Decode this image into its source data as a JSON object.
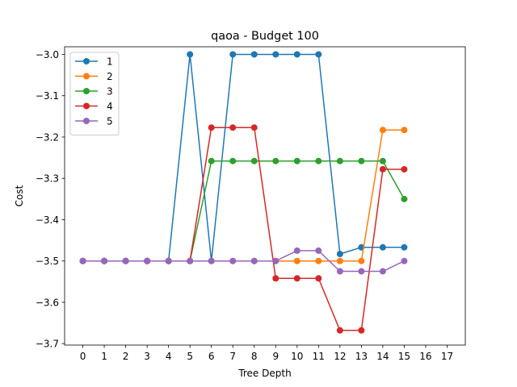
{
  "chart_data": {
    "type": "line",
    "title": "qaoa - Budget  100",
    "xlabel": "Tree Depth",
    "ylabel": "Cost",
    "xlim": [
      -0.85,
      17.85
    ],
    "ylim": [
      -3.7035,
      -2.9815
    ],
    "x_ticks": [
      "0",
      "1",
      "2",
      "3",
      "4",
      "5",
      "6",
      "7",
      "8",
      "9",
      "10",
      "11",
      "12",
      "13",
      "14",
      "15",
      "16",
      "17"
    ],
    "y_ticks": [
      "−3.0",
      "−3.1",
      "−3.2",
      "−3.3",
      "−3.4",
      "−3.5",
      "−3.6",
      "−3.7"
    ],
    "y_tick_values": [
      -3.0,
      -3.1,
      -3.2,
      -3.3,
      -3.4,
      -3.5,
      -3.6,
      -3.7
    ],
    "grid": false,
    "legend_position": "top-left",
    "x": [
      0,
      1,
      2,
      3,
      4,
      5,
      6,
      7,
      8,
      9,
      10,
      11,
      12,
      13,
      14,
      15
    ],
    "series": [
      {
        "name": "1",
        "color": "#1f77b4",
        "values": [
          -3.5,
          -3.5,
          -3.5,
          -3.5,
          -3.5,
          -3.0,
          -3.5,
          -3.0,
          -3.0,
          -3.0,
          -3.0,
          -3.0,
          -3.483,
          -3.467,
          -3.467,
          -3.467
        ]
      },
      {
        "name": "2",
        "color": "#ff7f0e",
        "values": [
          -3.5,
          -3.5,
          -3.5,
          -3.5,
          -3.5,
          -3.5,
          -3.5,
          -3.5,
          -3.5,
          -3.5,
          -3.5,
          -3.5,
          -3.5,
          -3.5,
          -3.183,
          -3.183
        ]
      },
      {
        "name": "3",
        "color": "#2ca02c",
        "values": [
          -3.5,
          -3.5,
          -3.5,
          -3.5,
          -3.5,
          -3.5,
          -3.258,
          -3.258,
          -3.258,
          -3.258,
          -3.258,
          -3.258,
          -3.258,
          -3.258,
          -3.258,
          -3.35
        ]
      },
      {
        "name": "4",
        "color": "#d62728",
        "values": [
          -3.5,
          -3.5,
          -3.5,
          -3.5,
          -3.5,
          -3.5,
          -3.177,
          -3.177,
          -3.177,
          -3.542,
          -3.542,
          -3.542,
          -3.668,
          -3.668,
          -3.278,
          -3.278
        ]
      },
      {
        "name": "5",
        "color": "#9467bd",
        "values": [
          -3.5,
          -3.5,
          -3.5,
          -3.5,
          -3.5,
          -3.5,
          -3.5,
          -3.5,
          -3.5,
          -3.5,
          -3.475,
          -3.475,
          -3.525,
          -3.525,
          -3.525,
          -3.5
        ]
      }
    ]
  }
}
